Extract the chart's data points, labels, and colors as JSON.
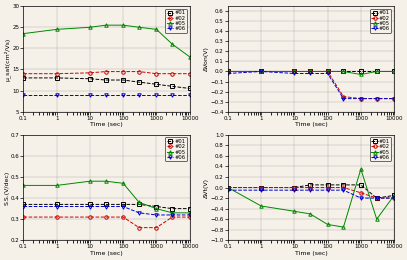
{
  "time": [
    0.1,
    1,
    10,
    30,
    100,
    300,
    1000,
    3000,
    10000
  ],
  "mu_sat": {
    "#01": [
      13.0,
      13.0,
      12.8,
      12.5,
      12.5,
      12.0,
      11.5,
      11.0,
      10.5
    ],
    "#02": [
      14.0,
      14.0,
      14.2,
      14.5,
      14.5,
      14.5,
      14.0,
      14.0,
      14.0
    ],
    "#05": [
      23.5,
      24.5,
      25.0,
      25.5,
      25.5,
      25.0,
      24.5,
      21.0,
      18.0
    ],
    "#06": [
      9.0,
      9.0,
      9.0,
      9.0,
      9.0,
      9.0,
      9.0,
      9.0,
      9.0
    ]
  },
  "delta_von": {
    "#01": [
      0.0,
      0.0,
      0.0,
      0.0,
      0.0,
      0.0,
      0.0,
      0.0,
      0.0
    ],
    "#02": [
      0.0,
      0.0,
      0.0,
      0.0,
      0.0,
      -0.25,
      -0.27,
      -0.27,
      -0.27
    ],
    "#05": [
      0.0,
      0.0,
      0.0,
      0.0,
      0.0,
      0.0,
      -0.03,
      0.0,
      0.0
    ],
    "#06": [
      -0.02,
      0.0,
      -0.02,
      -0.02,
      -0.02,
      -0.27,
      -0.27,
      -0.27,
      -0.27
    ]
  },
  "ss": {
    "#01": [
      0.37,
      0.37,
      0.37,
      0.37,
      0.37,
      0.37,
      0.36,
      0.35,
      0.35
    ],
    "#02": [
      0.31,
      0.31,
      0.31,
      0.31,
      0.31,
      0.26,
      0.26,
      0.31,
      0.31
    ],
    "#05": [
      0.46,
      0.46,
      0.48,
      0.48,
      0.47,
      0.38,
      0.35,
      0.33,
      0.33
    ],
    "#06": [
      0.36,
      0.36,
      0.36,
      0.36,
      0.36,
      0.33,
      0.32,
      0.32,
      0.32
    ]
  },
  "delta_vt": {
    "#01": [
      0.0,
      0.0,
      0.0,
      0.05,
      0.05,
      0.05,
      0.05,
      -0.2,
      -0.15
    ],
    "#02": [
      0.0,
      0.0,
      0.0,
      0.0,
      0.0,
      0.0,
      -0.1,
      -0.2,
      -0.2
    ],
    "#05": [
      0.0,
      -0.35,
      -0.45,
      -0.5,
      -0.7,
      -0.75,
      0.35,
      -0.6,
      -0.15
    ],
    "#06": [
      -0.05,
      -0.05,
      -0.05,
      -0.05,
      -0.05,
      -0.05,
      -0.2,
      -0.2,
      -0.2
    ]
  },
  "colors": {
    "#01": "#000000",
    "#02": "#cc0000",
    "#05": "#008800",
    "#06": "#0000cc"
  },
  "markers": {
    "#01": "s",
    "#02": "o",
    "#05": "^",
    "#06": "v"
  },
  "linestyles": {
    "#01": "--",
    "#02": "--",
    "#05": "-",
    "#06": "--"
  },
  "ylims": {
    "mu_sat": [
      5,
      30
    ],
    "delta_von": [
      -0.4,
      0.65
    ],
    "ss": [
      0.2,
      0.7
    ],
    "delta_vt": [
      -1.0,
      1.0
    ]
  },
  "yticks": {
    "mu_sat": [
      5,
      10,
      15,
      20,
      25,
      30
    ],
    "delta_von": [
      -0.4,
      -0.3,
      -0.2,
      -0.1,
      0.0,
      0.1,
      0.2,
      0.3,
      0.4,
      0.5,
      0.6
    ],
    "ss": [
      0.2,
      0.3,
      0.4,
      0.5,
      0.6,
      0.7
    ],
    "delta_vt": [
      -1.0,
      -0.8,
      -0.6,
      -0.4,
      -0.2,
      0.0,
      0.2,
      0.4,
      0.6,
      0.8,
      1.0
    ]
  },
  "ylabels": {
    "mu_sat": "μ_sat(cm²/Vs)",
    "delta_von": "ΔVon(V)",
    "ss": "S.S.(V/dec)",
    "delta_vt": "ΔVt(V)"
  },
  "xlabel": "Time (sec)",
  "series": [
    "#01",
    "#02",
    "#05",
    "#06"
  ],
  "bg_color": "#f5f0e8",
  "plot_bg_color": "#f5f0e8"
}
